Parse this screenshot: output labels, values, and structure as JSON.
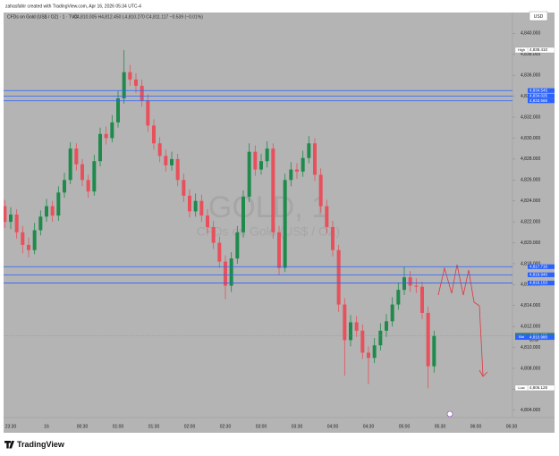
{
  "header": {
    "caption": "zahasfahir created with TradingView.com, Apr 16, 2026 05:34 UTC-4",
    "currency": "USD"
  },
  "footer": {
    "brand": "TradingView"
  },
  "chart_data": {
    "type": "candlestick",
    "symbol_line": "CFDs on Gold (US$ / OZ) · 1 · TVC",
    "ohlc_line": "O4,810.005 H4,812.450 L4,810.270 C4,811.117 −0.539 (−0.01%)",
    "watermark": {
      "symbol": "GOLD, 1",
      "description": "CFDs on Gold (US$ / OZ)"
    },
    "up_color": "#1f8a4c",
    "down_color": "#e8505b",
    "categories": [
      null,
      "23:30",
      null,
      null,
      null,
      null,
      null,
      "16",
      null,
      null,
      null,
      null,
      null,
      "00:30",
      null,
      null,
      null,
      null,
      null,
      "01:00",
      null,
      null,
      null,
      null,
      null,
      "01:30",
      null,
      null,
      null,
      null,
      null,
      "02:00",
      null,
      null,
      null,
      null,
      null,
      "02:30",
      null,
      null,
      null,
      null,
      null,
      "03:00",
      null,
      null,
      null,
      null,
      null,
      "03:30",
      null,
      null,
      null,
      null,
      null,
      "04:00",
      null,
      null,
      null,
      null,
      null,
      "04:30",
      null,
      null,
      null,
      null,
      null,
      "05:00",
      null,
      null,
      null,
      null,
      null,
      "05:30",
      null,
      null,
      null,
      null,
      null,
      "06:00",
      null,
      null,
      null,
      null,
      null,
      "06:30"
    ],
    "open": [
      4823.5,
      4822.0,
      4822.7,
      4821.0,
      4819.8,
      4819.3,
      4821.2,
      4822.5,
      4823.5,
      4822.6,
      4824.8,
      4826.0,
      4829.0,
      4827.5,
      4826.0,
      4824.9,
      4827.8,
      4830.4,
      4830.0,
      4831.5,
      4833.8,
      4836.3,
      4835.6,
      4835.0,
      4833.6,
      4831.2,
      4829.5,
      4828.3,
      4827.4,
      4828.0,
      4826.0,
      4824.5,
      4823.0,
      4824.0,
      4822.6,
      4821.5,
      4820.0,
      4818.2,
      4815.9,
      4818.5,
      4821.0,
      4824.4,
      4828.7,
      4827.0,
      4827.8,
      4829.0,
      4821.0,
      4817.6,
      4826.0,
      4827.0,
      4826.8,
      4828.1,
      4829.5,
      4826.5,
      4823.5,
      4821.5,
      4819.3,
      4814.1,
      4810.7,
      4812.4,
      4811.6,
      4809.5,
      4809.0,
      4810.2,
      4811.6,
      4812.5,
      4814.1,
      4815.5,
      4816.7,
      4815.9,
      4815.8,
      4813.3,
      4808.2,
      null,
      null,
      null,
      null,
      null,
      null,
      null,
      null,
      null,
      null,
      null,
      null,
      null
    ],
    "high": [
      4824.1,
      4823.4,
      4823.2,
      4821.6,
      4820.5,
      4821.9,
      4823.1,
      4824.2,
      4824.0,
      4825.4,
      4826.7,
      4829.6,
      4829.5,
      4828.0,
      4826.5,
      4828.4,
      4831.0,
      4831.1,
      4832.2,
      4834.5,
      4838.4,
      4837.0,
      4836.2,
      4835.6,
      4834.2,
      4831.8,
      4830.1,
      4828.9,
      4828.7,
      4828.5,
      4826.6,
      4825.1,
      4824.7,
      4824.6,
      4823.2,
      4822.1,
      4820.6,
      4818.8,
      4819.1,
      4821.6,
      4825.0,
      4829.5,
      4829.3,
      4828.5,
      4829.7,
      4829.5,
      4821.6,
      4826.6,
      4827.7,
      4827.6,
      4828.8,
      4830.2,
      4830.0,
      4827.1,
      4824.1,
      4822.1,
      4819.8,
      4814.7,
      4813.1,
      4813.0,
      4812.2,
      4810.1,
      4810.9,
      4812.3,
      4813.2,
      4814.8,
      4816.2,
      4817.7,
      4817.3,
      4816.6,
      4816.3,
      4813.9,
      4811.6,
      null,
      null,
      null,
      null,
      null,
      null,
      null,
      null,
      null,
      null,
      null,
      null,
      null
    ],
    "low": [
      4821.4,
      4821.3,
      4820.4,
      4819.0,
      4818.6,
      4818.9,
      4820.7,
      4822.0,
      4822.0,
      4822.1,
      4824.3,
      4825.6,
      4826.9,
      4825.4,
      4824.3,
      4824.5,
      4827.3,
      4829.4,
      4829.6,
      4831.0,
      4833.3,
      4835.0,
      4834.3,
      4833.0,
      4830.6,
      4828.9,
      4827.7,
      4826.8,
      4826.9,
      4825.4,
      4823.9,
      4822.4,
      4822.5,
      4822.0,
      4820.9,
      4819.4,
      4817.6,
      4814.6,
      4815.3,
      4818.0,
      4820.5,
      4823.9,
      4826.4,
      4826.5,
      4827.2,
      4820.4,
      4816.9,
      4817.2,
      4825.4,
      4826.1,
      4826.3,
      4827.6,
      4825.9,
      4822.9,
      4820.9,
      4818.7,
      4813.4,
      4807.3,
      4810.1,
      4811.0,
      4808.9,
      4806.5,
      4808.5,
      4809.7,
      4811.0,
      4812.0,
      4813.6,
      4815.0,
      4815.3,
      4815.2,
      4812.7,
      4806.1,
      4807.6,
      null,
      null,
      null,
      null,
      null,
      null,
      null,
      null,
      null,
      null,
      null,
      null,
      null
    ],
    "close": [
      4822.0,
      4822.7,
      4821.0,
      4819.8,
      4819.3,
      4821.2,
      4822.5,
      4823.5,
      4822.6,
      4824.8,
      4826.0,
      4829.0,
      4827.5,
      4826.0,
      4824.9,
      4827.8,
      4830.4,
      4830.0,
      4831.5,
      4833.8,
      4836.3,
      4835.6,
      4835.0,
      4833.6,
      4831.2,
      4829.5,
      4828.3,
      4827.4,
      4828.0,
      4826.0,
      4824.5,
      4823.0,
      4824.0,
      4822.6,
      4821.5,
      4820.0,
      4818.2,
      4815.9,
      4818.5,
      4821.0,
      4824.4,
      4828.7,
      4827.0,
      4827.8,
      4829.0,
      4821.0,
      4817.6,
      4826.0,
      4827.0,
      4826.8,
      4828.1,
      4829.5,
      4826.5,
      4823.5,
      4821.5,
      4819.3,
      4814.1,
      4810.7,
      4812.4,
      4811.6,
      4809.5,
      4809.0,
      4810.2,
      4811.6,
      4812.5,
      4814.1,
      4815.5,
      4816.7,
      4815.9,
      4815.8,
      4813.3,
      4808.2,
      4811.1,
      null,
      null,
      null,
      null,
      null,
      null,
      null,
      null,
      null,
      null,
      null,
      null,
      null
    ],
    "ylim": [
      4803.3,
      4842.0
    ],
    "yticks": [
      {
        "value": 4804,
        "label": "4,804.000"
      },
      {
        "value": 4806,
        "label": "4,806.000"
      },
      {
        "value": 4808,
        "label": "4,808.000"
      },
      {
        "value": 4810,
        "label": "4,810.000"
      },
      {
        "value": 4812,
        "label": "4,812.000"
      },
      {
        "value": 4814,
        "label": "4,814.000"
      },
      {
        "value": 4816,
        "label": "4,816.000"
      },
      {
        "value": 4818,
        "label": "4,818.000"
      },
      {
        "value": 4820,
        "label": "4,820.000"
      },
      {
        "value": 4822,
        "label": "4,822.000"
      },
      {
        "value": 4824,
        "label": "4,824.000"
      },
      {
        "value": 4826,
        "label": "4,826.000"
      },
      {
        "value": 4828,
        "label": "4,828.000"
      },
      {
        "value": 4830,
        "label": "4,830.000"
      },
      {
        "value": 4832,
        "label": "4,832.000"
      },
      {
        "value": 4834,
        "label": "4,834.000"
      },
      {
        "value": 4836,
        "label": "4,836.000"
      },
      {
        "value": 4838,
        "label": "4,838.000"
      },
      {
        "value": 4840,
        "label": "4,840.000"
      }
    ],
    "line_color": "#2962ff",
    "horizontal_lines": [
      {
        "value": 4834.545,
        "label": "4,834.545"
      },
      {
        "value": 4834.025,
        "label": "4,834.025"
      },
      {
        "value": 4833.566,
        "label": "4,833.566"
      },
      {
        "value": 4817.716,
        "label": "4,817.716"
      },
      {
        "value": 4816.94,
        "label": "4,816.940"
      },
      {
        "value": 4816.153,
        "label": "4,816.153"
      }
    ],
    "price_labels": [
      {
        "name": "High",
        "value": 4838.41,
        "label": "4,838.410",
        "color": "#ffffff"
      },
      {
        "name": "Ask",
        "value": 4811.135,
        "label": "4,811.135",
        "color": "#e8505b"
      },
      {
        "name": "GOLD",
        "value": 4811.117,
        "label": "4,811.117",
        "color": "#1f8a4c"
      },
      {
        "name": "Bid",
        "value": 4810.98,
        "label": "4,810.980",
        "color": "#2962ff"
      },
      {
        "name": "Low",
        "value": 4806.128,
        "label": "4,806.128",
        "color": "#ffffff"
      }
    ],
    "countdown": "00:30"
  }
}
